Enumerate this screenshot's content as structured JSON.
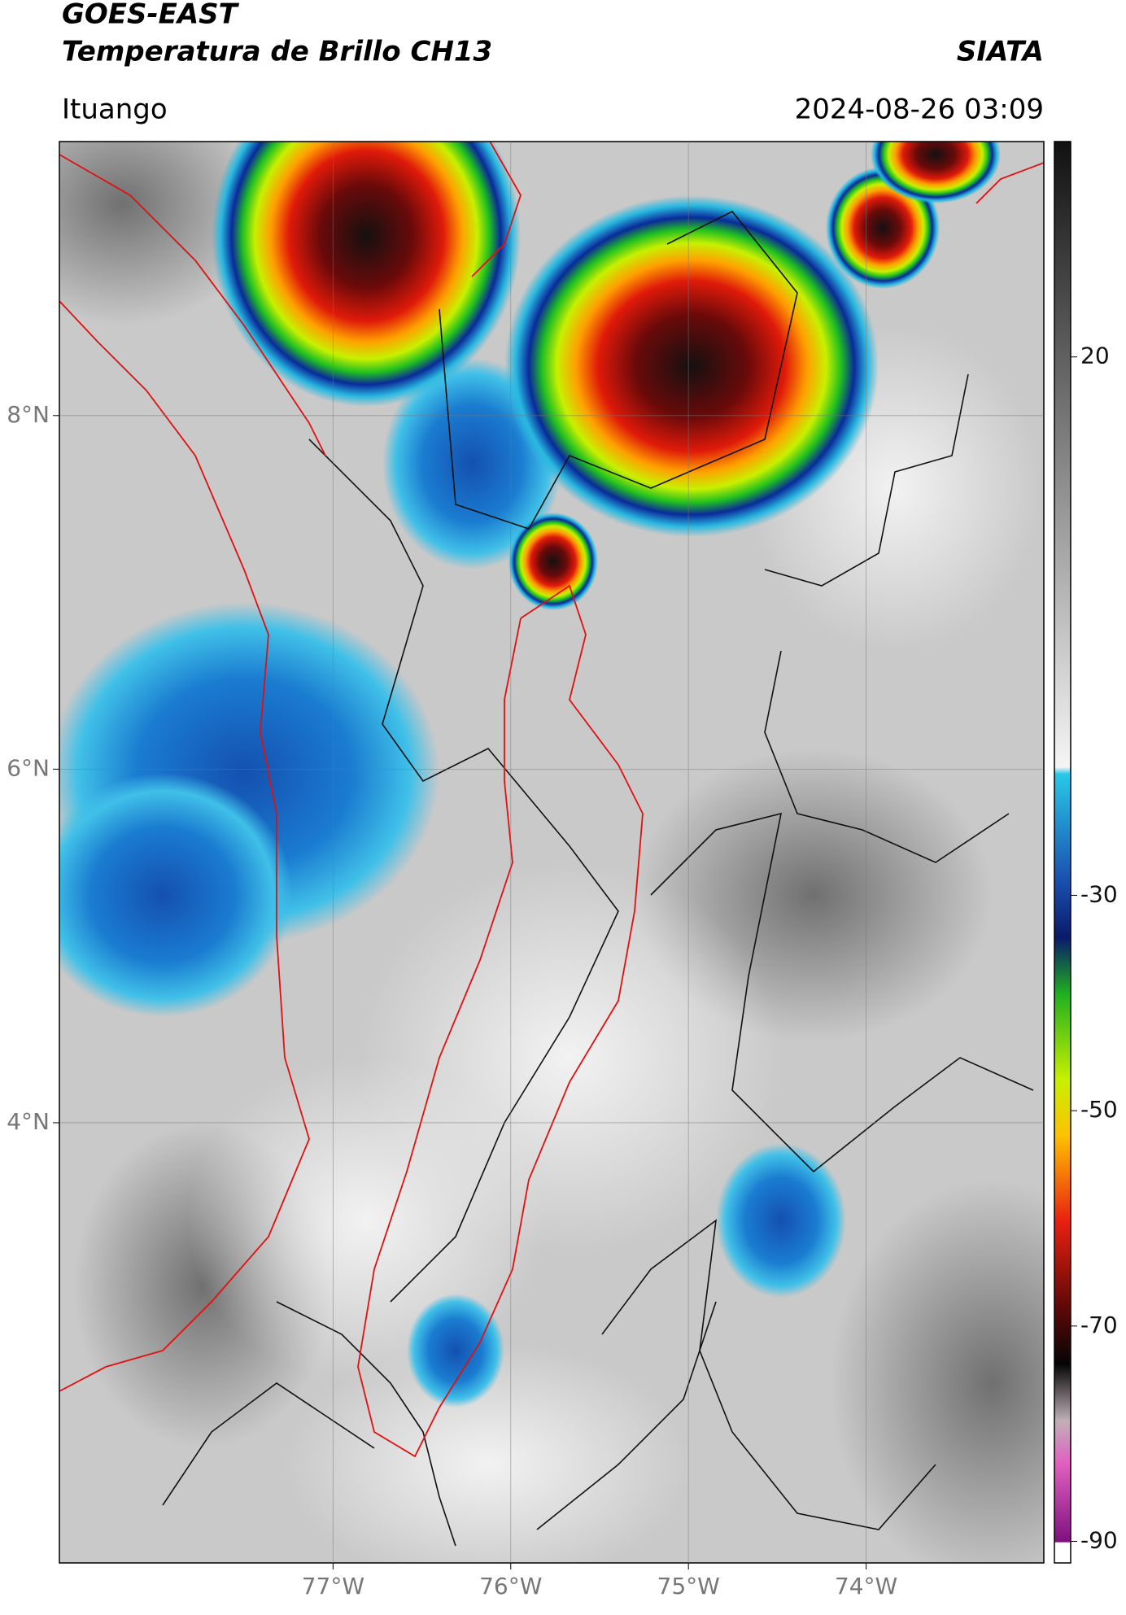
{
  "header": {
    "title": "GOES-EAST",
    "subtitle": "Temperatura de Brillo CH13",
    "source": "SIATA",
    "location": "Ituango",
    "datetime": "2024-08-26 03:09"
  },
  "map": {
    "lonlim": [
      -78.54,
      -73.0
    ],
    "latlim": [
      1.51,
      9.55
    ],
    "lonticks": [
      {
        "value": -77,
        "label": "77°W"
      },
      {
        "value": -76,
        "label": "76°W"
      },
      {
        "value": -75,
        "label": "75°W"
      },
      {
        "value": -74,
        "label": "74°W"
      }
    ],
    "latticks": [
      {
        "value": 8,
        "label": "8°N"
      },
      {
        "value": 6,
        "label": "6°N"
      },
      {
        "value": 4,
        "label": "4°N"
      }
    ],
    "grid": true
  },
  "colorbar": {
    "lim": [
      -92,
      40
    ],
    "ticks": [
      20,
      -30,
      -50,
      -70,
      -90
    ]
  }
}
